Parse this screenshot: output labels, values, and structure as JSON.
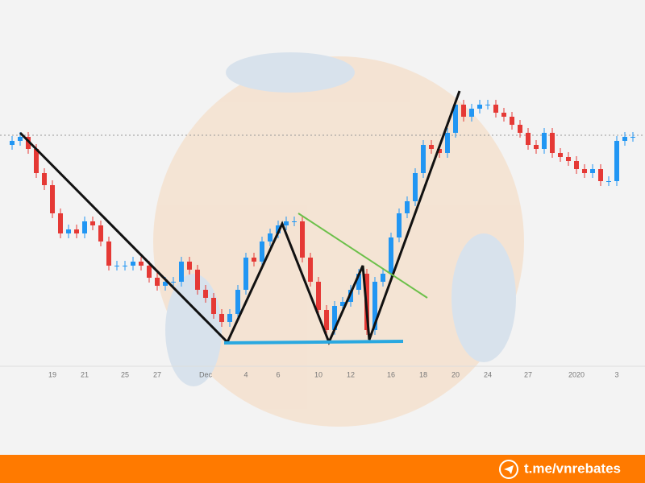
{
  "chart_data": {
    "type": "candlestick",
    "categories": [
      null,
      null,
      null,
      null,
      null,
      "19",
      null,
      null,
      null,
      "21",
      null,
      null,
      null,
      null,
      "25",
      null,
      null,
      null,
      "27",
      null,
      null,
      null,
      null,
      null,
      "Dec",
      null,
      null,
      null,
      null,
      "4",
      null,
      null,
      null,
      "6",
      null,
      null,
      null,
      null,
      "10",
      null,
      null,
      null,
      "12",
      null,
      null,
      null,
      null,
      "16",
      null,
      null,
      null,
      "18",
      null,
      null,
      null,
      "20",
      null,
      null,
      null,
      "24",
      null,
      null,
      null,
      null,
      "27",
      null,
      null,
      null,
      null,
      null,
      "2020",
      null,
      null,
      null,
      null,
      "3",
      null,
      null
    ],
    "open": [
      280,
      285,
      290,
      275,
      245,
      230,
      195,
      170,
      175,
      170,
      185,
      180,
      160,
      130,
      130,
      130,
      135,
      130,
      115,
      105,
      110,
      110,
      135,
      125,
      100,
      90,
      70,
      60,
      70,
      100,
      140,
      135,
      160,
      170,
      180,
      185,
      185,
      140,
      110,
      75,
      50,
      80,
      85,
      100,
      120,
      50,
      110,
      120,
      165,
      195,
      210,
      245,
      280,
      275,
      270,
      295,
      330,
      315,
      325,
      330,
      330,
      320,
      315,
      305,
      295,
      280,
      275,
      295,
      270,
      265,
      260,
      250,
      245,
      250,
      235,
      235,
      285,
      290
    ],
    "high": [
      291,
      296,
      296,
      281,
      251,
      236,
      201,
      181,
      181,
      191,
      191,
      186,
      166,
      136,
      136,
      141,
      141,
      136,
      121,
      116,
      116,
      141,
      141,
      131,
      106,
      96,
      76,
      76,
      106,
      146,
      146,
      166,
      176,
      186,
      191,
      191,
      191,
      146,
      116,
      81,
      86,
      91,
      106,
      126,
      126,
      116,
      126,
      171,
      201,
      216,
      251,
      286,
      286,
      281,
      301,
      336,
      336,
      331,
      336,
      336,
      336,
      326,
      321,
      311,
      301,
      286,
      301,
      301,
      276,
      271,
      266,
      256,
      256,
      256,
      241,
      291,
      296,
      296
    ],
    "low": [
      274,
      279,
      269,
      239,
      224,
      189,
      164,
      164,
      164,
      164,
      174,
      154,
      124,
      124,
      124,
      124,
      124,
      109,
      99,
      99,
      104,
      104,
      119,
      94,
      84,
      64,
      54,
      54,
      64,
      94,
      129,
      129,
      154,
      164,
      174,
      179,
      134,
      104,
      69,
      44,
      44,
      74,
      79,
      94,
      44,
      44,
      104,
      114,
      159,
      189,
      204,
      239,
      269,
      264,
      264,
      289,
      309,
      309,
      319,
      324,
      314,
      309,
      299,
      289,
      274,
      269,
      269,
      264,
      259,
      254,
      244,
      239,
      239,
      229,
      229,
      229,
      279,
      284
    ],
    "close": [
      285,
      290,
      275,
      245,
      230,
      195,
      170,
      175,
      170,
      185,
      180,
      160,
      130,
      130,
      130,
      135,
      130,
      115,
      105,
      110,
      110,
      135,
      125,
      100,
      90,
      70,
      60,
      70,
      100,
      140,
      135,
      160,
      170,
      180,
      185,
      185,
      140,
      110,
      75,
      50,
      80,
      85,
      100,
      120,
      50,
      110,
      120,
      165,
      195,
      210,
      245,
      280,
      275,
      270,
      295,
      330,
      315,
      325,
      330,
      330,
      320,
      315,
      305,
      295,
      280,
      275,
      295,
      270,
      265,
      260,
      250,
      245,
      250,
      235,
      235,
      285,
      290,
      290
    ],
    "up_color": "#2196f3",
    "down_color": "#e53935",
    "ylim": [
      0,
      360
    ]
  },
  "footer": {
    "link": "t.me/vnrebates"
  }
}
